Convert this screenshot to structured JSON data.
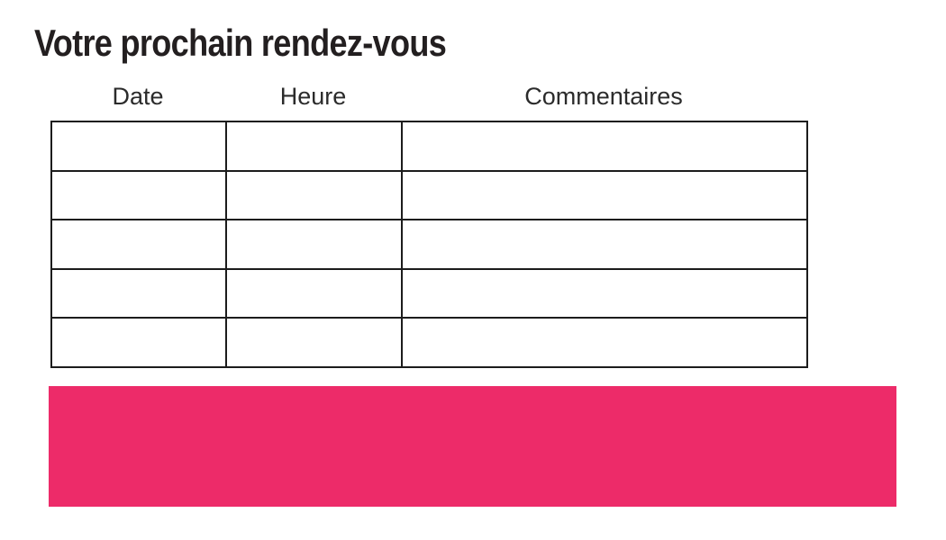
{
  "page": {
    "title": "Votre prochain rendez-vous"
  },
  "table": {
    "columns": [
      {
        "label": "Date"
      },
      {
        "label": "Heure"
      },
      {
        "label": "Commentaires"
      }
    ],
    "rows": [
      [
        "",
        "",
        ""
      ],
      [
        "",
        "",
        ""
      ],
      [
        "",
        "",
        ""
      ],
      [
        "",
        "",
        ""
      ],
      [
        "",
        "",
        ""
      ]
    ]
  },
  "colors": {
    "accent_pink": "#ed2b69",
    "text": "#231f20",
    "table_border": "#1c1c1c"
  }
}
